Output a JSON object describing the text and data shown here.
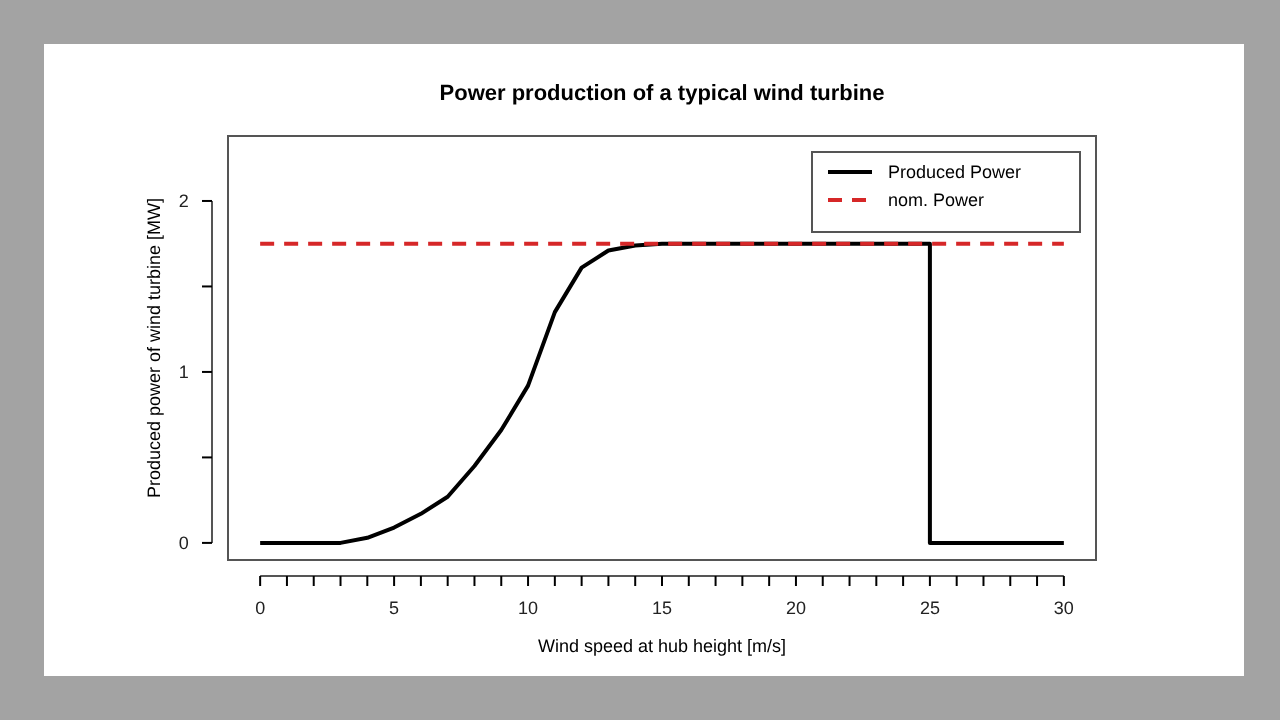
{
  "chart_data": {
    "type": "line",
    "title": "Power production of a typical wind turbine",
    "xlabel": "Wind speed at hub height [m/s]",
    "ylabel": "Produced power of wind turbine [MW]",
    "xlim": [
      -1.2,
      31.2
    ],
    "ylim": [
      -0.1,
      2.38
    ],
    "xticks": [
      0,
      {
        "value": 1,
        "label": null
      },
      {
        "value": 2,
        "label": null
      },
      {
        "value": 3,
        "label": null
      },
      {
        "value": 4,
        "label": null
      },
      5,
      {
        "value": 6,
        "label": null
      },
      {
        "value": 7,
        "label": null
      },
      {
        "value": 8,
        "label": null
      },
      {
        "value": 9,
        "label": null
      },
      10,
      {
        "value": 11,
        "label": null
      },
      {
        "value": 12,
        "label": null
      },
      {
        "value": 13,
        "label": null
      },
      {
        "value": 14,
        "label": null
      },
      15,
      {
        "value": 16,
        "label": null
      },
      {
        "value": 17,
        "label": null
      },
      {
        "value": 18,
        "label": null
      },
      {
        "value": 19,
        "label": null
      },
      20,
      {
        "value": 21,
        "label": null
      },
      {
        "value": 22,
        "label": null
      },
      {
        "value": 23,
        "label": null
      },
      {
        "value": 24,
        "label": null
      },
      25,
      {
        "value": 26,
        "label": null
      },
      {
        "value": 27,
        "label": null
      },
      {
        "value": 28,
        "label": null
      },
      {
        "value": 29,
        "label": null
      },
      30
    ],
    "yticks": [
      0,
      {
        "value": 0.5,
        "label": null
      },
      1,
      {
        "value": 1.5,
        "label": null
      },
      2
    ],
    "grid": false,
    "legend": "top right",
    "marker": "none",
    "series": [
      {
        "name": "Produced Power",
        "color": "#000000",
        "line_style": "solid",
        "x": [
          0,
          3,
          4,
          5,
          6,
          7,
          8,
          9,
          10,
          11,
          12,
          13,
          14,
          15,
          16,
          25,
          25,
          30
        ],
        "values": [
          0,
          0,
          0.03,
          0.09,
          0.17,
          0.27,
          0.45,
          0.66,
          0.92,
          1.35,
          1.61,
          1.71,
          1.74,
          1.75,
          1.75,
          1.75,
          0,
          0
        ]
      },
      {
        "name": "nom. Power",
        "color": "#d62728",
        "line_style": "dashed",
        "x": [
          0,
          30
        ],
        "values": [
          1.75,
          1.75
        ]
      }
    ]
  }
}
